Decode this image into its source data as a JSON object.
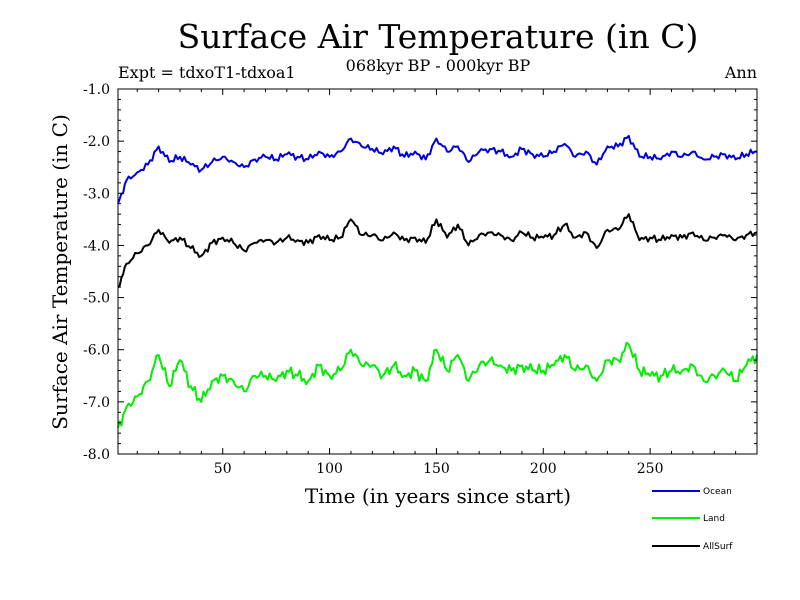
{
  "chart_data": {
    "type": "line",
    "title": "Surface Air Temperature (in C)",
    "subtitle": "068kyr BP - 000kyr BP",
    "experiment": "Expt = tdxoT1-tdxoa1",
    "season": "Ann",
    "xlabel": "Time (in years since start)",
    "ylabel": "Surface Air Temperature (in C)",
    "xlim": [
      1,
      300
    ],
    "ylim": [
      -8.0,
      -1.0
    ],
    "xticks": [
      50,
      100,
      150,
      200,
      250
    ],
    "xtick_labels": [
      "50",
      "100",
      "150",
      "200",
      "250"
    ],
    "yticks": [
      -1.0,
      -2.0,
      -3.0,
      -4.0,
      -5.0,
      -6.0,
      -7.0,
      -8.0
    ],
    "ytick_labels": [
      "-1.0",
      "-2.0",
      "-3.0",
      "-4.0",
      "-5.0",
      "-6.0",
      "-7.0",
      "-8.0"
    ],
    "legend_position": "bottom-right, outside plot",
    "series": [
      {
        "name": "Ocean",
        "color": "#0000dd",
        "x": [
          1,
          5,
          10,
          15,
          20,
          25,
          30,
          35,
          40,
          45,
          50,
          55,
          60,
          65,
          70,
          75,
          80,
          85,
          90,
          95,
          100,
          105,
          110,
          115,
          120,
          125,
          130,
          135,
          140,
          145,
          150,
          155,
          160,
          165,
          170,
          175,
          180,
          185,
          190,
          195,
          200,
          205,
          210,
          215,
          220,
          225,
          230,
          235,
          240,
          245,
          250,
          255,
          260,
          265,
          270,
          275,
          280,
          285,
          290,
          295,
          300
        ],
        "values": [
          -3.2,
          -2.75,
          -2.6,
          -2.45,
          -2.1,
          -2.4,
          -2.3,
          -2.45,
          -2.55,
          -2.4,
          -2.3,
          -2.4,
          -2.5,
          -2.35,
          -2.3,
          -2.35,
          -2.25,
          -2.3,
          -2.35,
          -2.2,
          -2.3,
          -2.2,
          -1.95,
          -2.1,
          -2.15,
          -2.25,
          -2.1,
          -2.3,
          -2.2,
          -2.35,
          -1.95,
          -2.2,
          -2.1,
          -2.4,
          -2.2,
          -2.15,
          -2.2,
          -2.3,
          -2.15,
          -2.25,
          -2.3,
          -2.2,
          -2.05,
          -2.3,
          -2.2,
          -2.45,
          -2.1,
          -2.1,
          -1.9,
          -2.3,
          -2.3,
          -2.35,
          -2.2,
          -2.3,
          -2.2,
          -2.35,
          -2.3,
          -2.25,
          -2.35,
          -2.25,
          -2.2
        ]
      },
      {
        "name": "Land",
        "color": "#00ee00",
        "x": [
          1,
          5,
          10,
          15,
          20,
          25,
          30,
          35,
          40,
          45,
          50,
          55,
          60,
          65,
          70,
          75,
          80,
          85,
          90,
          95,
          100,
          105,
          110,
          115,
          120,
          125,
          130,
          135,
          140,
          145,
          150,
          155,
          160,
          165,
          170,
          175,
          180,
          185,
          190,
          195,
          200,
          205,
          210,
          215,
          220,
          225,
          230,
          235,
          240,
          245,
          250,
          255,
          260,
          265,
          270,
          275,
          280,
          285,
          290,
          295,
          300
        ],
        "values": [
          -7.5,
          -7.1,
          -6.9,
          -6.6,
          -6.1,
          -6.7,
          -6.2,
          -6.7,
          -7.0,
          -6.6,
          -6.5,
          -6.6,
          -6.8,
          -6.5,
          -6.5,
          -6.6,
          -6.4,
          -6.5,
          -6.6,
          -6.3,
          -6.5,
          -6.4,
          -6.0,
          -6.3,
          -6.3,
          -6.5,
          -6.3,
          -6.5,
          -6.4,
          -6.6,
          -6.0,
          -6.4,
          -6.1,
          -6.6,
          -6.3,
          -6.2,
          -6.3,
          -6.4,
          -6.3,
          -6.4,
          -6.4,
          -6.3,
          -6.1,
          -6.4,
          -6.3,
          -6.6,
          -6.2,
          -6.2,
          -5.9,
          -6.4,
          -6.5,
          -6.5,
          -6.4,
          -6.4,
          -6.3,
          -6.6,
          -6.5,
          -6.4,
          -6.6,
          -6.3,
          -6.1
        ]
      },
      {
        "name": "AllSurf",
        "color": "#000000",
        "x": [
          1,
          5,
          10,
          15,
          20,
          25,
          30,
          35,
          40,
          45,
          50,
          55,
          60,
          65,
          70,
          75,
          80,
          85,
          90,
          95,
          100,
          105,
          110,
          115,
          120,
          125,
          130,
          135,
          140,
          145,
          150,
          155,
          160,
          165,
          170,
          175,
          180,
          185,
          190,
          195,
          200,
          205,
          210,
          215,
          220,
          225,
          230,
          235,
          240,
          245,
          250,
          255,
          260,
          265,
          270,
          275,
          280,
          285,
          290,
          295,
          300
        ],
        "values": [
          -4.8,
          -4.35,
          -4.15,
          -4.0,
          -3.7,
          -3.95,
          -3.85,
          -4.05,
          -4.2,
          -3.95,
          -3.85,
          -3.95,
          -4.1,
          -3.95,
          -3.9,
          -3.95,
          -3.85,
          -3.9,
          -3.95,
          -3.8,
          -3.9,
          -3.85,
          -3.5,
          -3.8,
          -3.8,
          -3.9,
          -3.75,
          -3.9,
          -3.85,
          -3.95,
          -3.5,
          -3.85,
          -3.6,
          -4.0,
          -3.8,
          -3.75,
          -3.8,
          -3.9,
          -3.75,
          -3.85,
          -3.85,
          -3.8,
          -3.6,
          -3.85,
          -3.75,
          -4.05,
          -3.7,
          -3.7,
          -3.4,
          -3.9,
          -3.85,
          -3.9,
          -3.8,
          -3.85,
          -3.75,
          -3.9,
          -3.85,
          -3.8,
          -3.9,
          -3.8,
          -3.75
        ]
      }
    ]
  }
}
